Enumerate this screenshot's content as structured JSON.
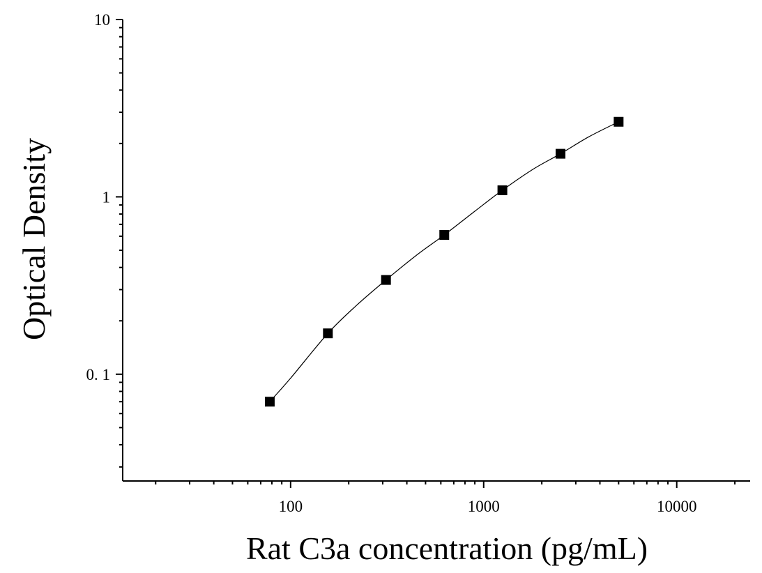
{
  "chart_data": {
    "type": "scatter",
    "title": "",
    "xlabel": "Rat C3a concentration (pg/mL)",
    "ylabel": "Optical Density",
    "x_scale": "log",
    "y_scale": "log",
    "xlim": [
      13.5,
      24000
    ],
    "ylim": [
      0.025,
      10
    ],
    "x_ticks": [
      {
        "value": 100,
        "label": "100"
      },
      {
        "value": 1000,
        "label": "1000"
      },
      {
        "value": 10000,
        "label": "10000"
      }
    ],
    "y_ticks": [
      {
        "value": 0.1,
        "label": "0. 1"
      },
      {
        "value": 1,
        "label": "1"
      },
      {
        "value": 10,
        "label": "10"
      }
    ],
    "grid": false,
    "legend": "none",
    "series": [
      {
        "marker": "square",
        "color": "#000000",
        "x": [
          78,
          156,
          312,
          625,
          1250,
          2500,
          5000
        ],
        "y": [
          0.07,
          0.17,
          0.34,
          0.61,
          1.09,
          1.75,
          2.65
        ]
      }
    ],
    "fit_curve": {
      "type": "line",
      "color": "#000000",
      "x": [
        78,
        100,
        156,
        220,
        312,
        450,
        625,
        900,
        1250,
        1800,
        2500,
        3500,
        5000
      ],
      "y": [
        0.07,
        0.095,
        0.17,
        0.245,
        0.34,
        0.47,
        0.61,
        0.83,
        1.09,
        1.43,
        1.75,
        2.18,
        2.65
      ]
    }
  }
}
